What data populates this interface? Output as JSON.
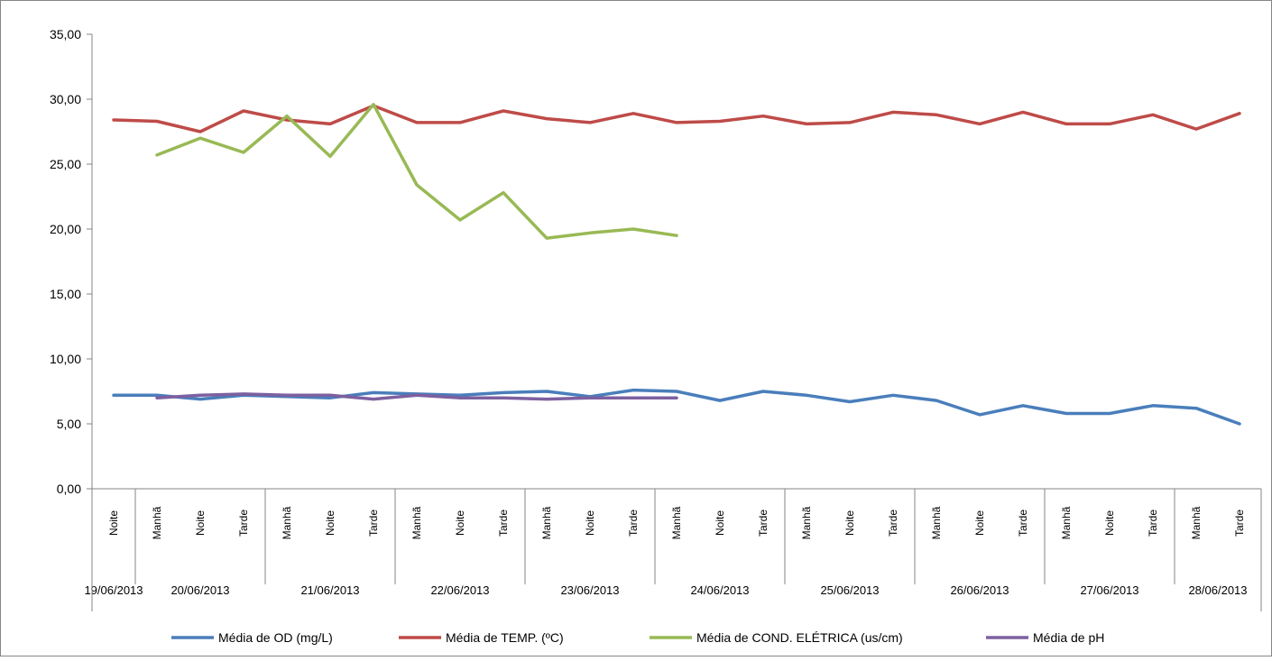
{
  "chart_data": {
    "type": "line",
    "title": "",
    "xlabel": "",
    "ylabel": "",
    "ylim": [
      0,
      35
    ],
    "y_tick_labels": [
      "0,00",
      "5,00",
      "10,00",
      "15,00",
      "20,00",
      "25,00",
      "30,00",
      "35,00"
    ],
    "grid": false,
    "legend_position": "bottom",
    "categories": [
      "Noite",
      "Manhã",
      "Noite",
      "Tarde",
      "Manhã",
      "Noite",
      "Tarde",
      "Manhã",
      "Noite",
      "Tarde",
      "Manhã",
      "Noite",
      "Tarde",
      "Manhã",
      "Noite",
      "Tarde",
      "Manhã",
      "Noite",
      "Tarde",
      "Manhã",
      "Noite",
      "Tarde",
      "Manhã",
      "Noite",
      "Tarde",
      "Manhã",
      "Tarde"
    ],
    "date_groups": [
      {
        "label": "19/06/2013",
        "count": 1
      },
      {
        "label": "20/06/2013",
        "count": 3
      },
      {
        "label": "21/06/2013",
        "count": 3
      },
      {
        "label": "22/06/2013",
        "count": 3
      },
      {
        "label": "23/06/2013",
        "count": 3
      },
      {
        "label": "24/06/2013",
        "count": 3
      },
      {
        "label": "25/06/2013",
        "count": 3
      },
      {
        "label": "26/06/2013",
        "count": 3
      },
      {
        "label": "27/06/2013",
        "count": 3
      },
      {
        "label": "28/06/2013",
        "count": 2
      }
    ],
    "series": [
      {
        "name": "Média de OD (mg/L)",
        "color": "#4a7ebb",
        "values": [
          7.2,
          7.2,
          6.9,
          7.2,
          7.1,
          7.0,
          7.4,
          7.3,
          7.2,
          7.4,
          7.5,
          7.1,
          7.6,
          7.5,
          6.8,
          7.5,
          7.2,
          6.7,
          7.2,
          6.8,
          5.7,
          6.4,
          5.8,
          5.8,
          6.4,
          6.2,
          5.0
        ]
      },
      {
        "name": "Média de TEMP. (ºC)",
        "color": "#be4b48",
        "values": [
          28.4,
          28.3,
          27.5,
          29.1,
          28.4,
          28.1,
          29.5,
          28.2,
          28.2,
          29.1,
          28.5,
          28.2,
          28.9,
          28.2,
          28.3,
          28.7,
          28.1,
          28.2,
          29.0,
          28.8,
          28.1,
          29.0,
          28.1,
          28.1,
          28.8,
          27.7,
          28.9
        ]
      },
      {
        "name": "Média de COND. ELÉTRICA (us/cm)",
        "color": "#98b954",
        "values": [
          null,
          25.7,
          27.0,
          25.9,
          28.7,
          25.6,
          29.6,
          23.4,
          20.7,
          22.8,
          19.3,
          19.7,
          20.0,
          19.5,
          null,
          null,
          null,
          null,
          null,
          null,
          null,
          null,
          null,
          null,
          null,
          null,
          null
        ]
      },
      {
        "name": "Média de pH",
        "color": "#7d60a0",
        "values": [
          null,
          7.0,
          7.2,
          7.3,
          7.2,
          7.2,
          6.9,
          7.2,
          7.0,
          7.0,
          6.9,
          7.0,
          7.0,
          7.0,
          null,
          null,
          null,
          null,
          null,
          null,
          null,
          null,
          null,
          null,
          null,
          null,
          null
        ]
      }
    ]
  }
}
